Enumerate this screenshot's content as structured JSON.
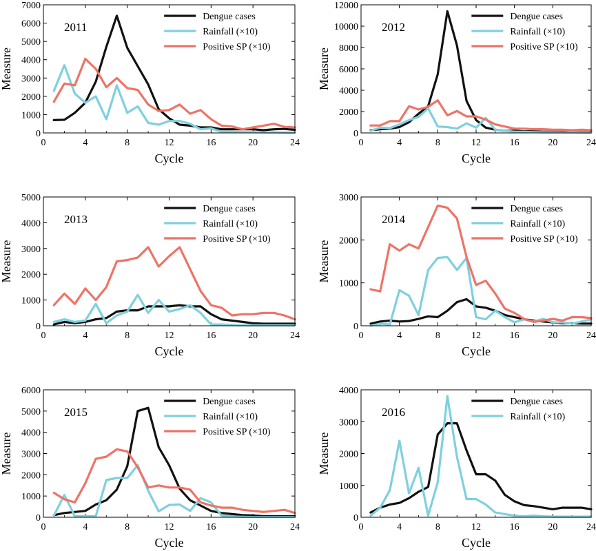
{
  "figure": {
    "series_colors": {
      "dengue": "#111111",
      "rainfall": "#7fd0de",
      "sp": "#ee7366"
    }
  },
  "chart_data": [
    {
      "type": "line",
      "title": "2011",
      "xlabel": "Cycle",
      "ylabel": "Measure",
      "xlim": [
        0,
        24
      ],
      "ylim": [
        0,
        7000
      ],
      "xticks": [
        0,
        4,
        8,
        12,
        16,
        20,
        24
      ],
      "yticks": [
        0,
        1000,
        2000,
        3000,
        4000,
        5000,
        6000,
        7000
      ],
      "legend_position": "top-right",
      "x": [
        1,
        2,
        3,
        4,
        5,
        6,
        7,
        8,
        9,
        10,
        11,
        12,
        13,
        14,
        15,
        16,
        17,
        18,
        19,
        20,
        21,
        22,
        23,
        24
      ],
      "series": [
        {
          "key": "dengue",
          "name": "Dengue cases",
          "values": [
            700,
            720,
            1100,
            1650,
            2800,
            4700,
            6400,
            4650,
            3650,
            2650,
            1300,
            800,
            450,
            400,
            300,
            300,
            200,
            200,
            200,
            200,
            150,
            200,
            220,
            170
          ]
        },
        {
          "key": "rainfall",
          "name": "Rainfall (×10)",
          "values": [
            2300,
            3700,
            2150,
            1650,
            2000,
            750,
            2600,
            1100,
            1450,
            550,
            450,
            650,
            650,
            500,
            200,
            250,
            60,
            60,
            40,
            40,
            30,
            30,
            20,
            20
          ]
        },
        {
          "key": "sp",
          "name": "Positive SP (×10)",
          "values": [
            1700,
            2700,
            2600,
            4050,
            3500,
            2500,
            3000,
            2450,
            2350,
            1550,
            1200,
            1250,
            1550,
            1050,
            1250,
            750,
            400,
            350,
            200,
            300,
            400,
            500,
            330,
            300
          ]
        }
      ]
    },
    {
      "type": "line",
      "title": "2012",
      "xlabel": "Cycle",
      "ylabel": "Measure",
      "xlim": [
        0,
        24
      ],
      "ylim": [
        0,
        12000
      ],
      "xticks": [
        0,
        4,
        8,
        12,
        16,
        20,
        24
      ],
      "yticks": [
        0,
        2000,
        4000,
        6000,
        8000,
        10000,
        12000
      ],
      "legend_position": "top-right",
      "x": [
        1,
        2,
        3,
        4,
        5,
        6,
        7,
        8,
        9,
        10,
        11,
        12,
        13,
        14,
        15,
        16,
        17,
        18,
        19,
        20,
        21,
        22,
        23,
        24
      ],
      "series": [
        {
          "key": "dengue",
          "name": "Dengue cases",
          "values": [
            250,
            350,
            400,
            550,
            1000,
            1800,
            2500,
            5500,
            11400,
            8200,
            3000,
            1200,
            500,
            300,
            200,
            200,
            150,
            150,
            100,
            100,
            100,
            80,
            80,
            80
          ]
        },
        {
          "key": "rainfall",
          "name": "Rainfall (×10)",
          "values": [
            200,
            500,
            450,
            800,
            1200,
            1500,
            2300,
            600,
            550,
            400,
            900,
            500,
            1400,
            300,
            200,
            100,
            100,
            80,
            60,
            60,
            50,
            50,
            40,
            30
          ]
        },
        {
          "key": "sp",
          "name": "Positive SP (×10)",
          "values": [
            700,
            700,
            1100,
            1100,
            2500,
            2200,
            2450,
            3050,
            1650,
            2050,
            1550,
            1550,
            1250,
            800,
            600,
            400,
            400,
            350,
            350,
            300,
            300,
            250,
            300,
            250
          ]
        }
      ]
    },
    {
      "type": "line",
      "title": "2013",
      "xlabel": "Cycle",
      "ylabel": "Measure",
      "xlim": [
        0,
        24
      ],
      "ylim": [
        0,
        5000
      ],
      "xticks": [
        0,
        4,
        8,
        12,
        16,
        20,
        24
      ],
      "yticks": [
        0,
        1000,
        2000,
        3000,
        4000,
        5000
      ],
      "legend_position": "top-right",
      "x": [
        1,
        2,
        3,
        4,
        5,
        6,
        7,
        8,
        9,
        10,
        11,
        12,
        13,
        14,
        15,
        16,
        17,
        18,
        19,
        20,
        21,
        22,
        23,
        24
      ],
      "series": [
        {
          "key": "dengue",
          "name": "Dengue cases",
          "values": [
            50,
            150,
            100,
            150,
            250,
            300,
            550,
            600,
            600,
            750,
            750,
            750,
            800,
            750,
            750,
            450,
            250,
            200,
            150,
            100,
            80,
            80,
            80,
            80
          ]
        },
        {
          "key": "rainfall",
          "name": "Rainfall (×10)",
          "values": [
            150,
            250,
            150,
            200,
            850,
            100,
            400,
            550,
            1200,
            500,
            1000,
            550,
            650,
            800,
            500,
            50,
            50,
            30,
            20,
            20,
            20,
            20,
            20,
            20
          ]
        },
        {
          "key": "sp",
          "name": "Positive SP (×10)",
          "values": [
            800,
            1250,
            850,
            1450,
            1000,
            1500,
            2500,
            2550,
            2650,
            3050,
            2300,
            2700,
            3050,
            2200,
            1350,
            800,
            700,
            400,
            450,
            450,
            500,
            500,
            400,
            250
          ]
        }
      ]
    },
    {
      "type": "line",
      "title": "2014",
      "xlabel": "Cycle",
      "ylabel": "Measure",
      "xlim": [
        0,
        24
      ],
      "ylim": [
        0,
        3000
      ],
      "xticks": [
        0,
        4,
        8,
        12,
        16,
        20,
        24
      ],
      "yticks": [
        0,
        1000,
        2000,
        3000
      ],
      "legend_position": "top-right",
      "x": [
        1,
        2,
        3,
        4,
        5,
        6,
        7,
        8,
        9,
        10,
        11,
        12,
        13,
        14,
        15,
        16,
        17,
        18,
        19,
        20,
        21,
        22,
        23,
        24
      ],
      "series": [
        {
          "key": "dengue",
          "name": "Dengue cases",
          "values": [
            50,
            100,
            120,
            100,
            110,
            160,
            220,
            200,
            350,
            550,
            620,
            450,
            420,
            350,
            250,
            200,
            150,
            120,
            100,
            80,
            60,
            60,
            50,
            50
          ]
        },
        {
          "key": "rainfall",
          "name": "Rainfall (×10)",
          "values": [
            0,
            50,
            30,
            830,
            700,
            250,
            1300,
            1580,
            1600,
            1300,
            1580,
            200,
            150,
            350,
            200,
            80,
            150,
            100,
            160,
            80,
            80,
            50,
            100,
            150
          ]
        },
        {
          "key": "sp",
          "name": "Positive SP (×10)",
          "values": [
            850,
            800,
            1900,
            1750,
            1900,
            1800,
            2300,
            2800,
            2750,
            2500,
            1600,
            950,
            1050,
            750,
            400,
            300,
            160,
            90,
            120,
            160,
            120,
            200,
            200,
            180
          ]
        }
      ]
    },
    {
      "type": "line",
      "title": "2015",
      "xlabel": "Cycle",
      "ylabel": "Measure",
      "xlim": [
        0,
        24
      ],
      "ylim": [
        0,
        6000
      ],
      "xticks": [
        0,
        4,
        8,
        12,
        16,
        20,
        24
      ],
      "yticks": [
        0,
        1000,
        2000,
        3000,
        4000,
        5000,
        6000
      ],
      "legend_position": "top-right",
      "x": [
        1,
        2,
        3,
        4,
        5,
        6,
        7,
        8,
        9,
        10,
        11,
        12,
        13,
        14,
        15,
        16,
        17,
        18,
        19,
        20,
        21,
        22,
        23,
        24
      ],
      "series": [
        {
          "key": "dengue",
          "name": "Dengue cases",
          "values": [
            100,
            200,
            250,
            300,
            600,
            800,
            1300,
            2400,
            5000,
            5150,
            3300,
            2450,
            1350,
            800,
            550,
            300,
            200,
            150,
            100,
            80,
            50,
            50,
            50,
            50
          ]
        },
        {
          "key": "rainfall",
          "name": "Rainfall (×10)",
          "values": [
            80,
            1050,
            50,
            50,
            50,
            1750,
            1850,
            1850,
            2450,
            1250,
            280,
            580,
            600,
            300,
            900,
            700,
            80,
            40,
            20,
            10,
            10,
            10,
            10,
            10
          ]
        },
        {
          "key": "sp",
          "name": "Positive SP (×10)",
          "values": [
            1150,
            850,
            700,
            1600,
            2750,
            2850,
            3200,
            3100,
            2350,
            1400,
            1500,
            1400,
            1400,
            1300,
            700,
            550,
            450,
            450,
            350,
            300,
            250,
            300,
            350,
            200
          ]
        }
      ]
    },
    {
      "type": "line",
      "title": "2016",
      "xlabel": "Cycle",
      "ylabel": "Measure",
      "xlim": [
        0,
        24
      ],
      "ylim": [
        0,
        4000
      ],
      "xticks": [
        0,
        4,
        8,
        12,
        16,
        20,
        24
      ],
      "yticks": [
        0,
        1000,
        2000,
        3000,
        4000
      ],
      "legend_position": "top-right",
      "x": [
        1,
        2,
        3,
        4,
        5,
        6,
        7,
        8,
        9,
        10,
        11,
        12,
        13,
        14,
        15,
        16,
        17,
        18,
        19,
        20,
        21,
        22,
        23,
        24
      ],
      "series": [
        {
          "key": "dengue",
          "name": "Dengue cases",
          "values": [
            150,
            300,
            400,
            450,
            600,
            800,
            950,
            2600,
            2950,
            2950,
            2100,
            1350,
            1350,
            1150,
            700,
            500,
            380,
            350,
            300,
            250,
            300,
            300,
            300,
            250
          ]
        },
        {
          "key": "rainfall",
          "name": "Rainfall (×10)",
          "values": [
            50,
            300,
            850,
            2400,
            750,
            1550,
            50,
            1100,
            3800,
            1900,
            570,
            570,
            400,
            150,
            100,
            50,
            30,
            50,
            30,
            20,
            20,
            20,
            20,
            20
          ]
        }
      ]
    }
  ]
}
